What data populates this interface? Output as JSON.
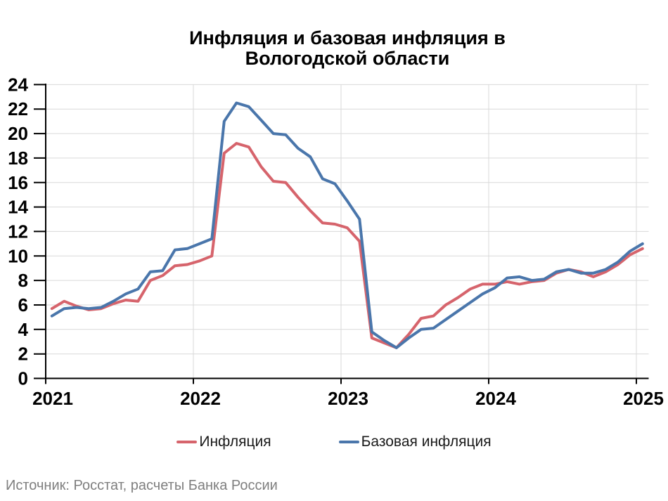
{
  "chart": {
    "title_lines": [
      "Инфляция и базовая инфляция в",
      "Вологодской области"
    ],
    "source": "Источник: Росстат, расчеты Банка России"
  },
  "chart_data": {
    "type": "line",
    "title": "Инфляция и базовая инфляция в Вологодской области",
    "xlabel": "",
    "ylabel": "",
    "x_start": "2021-01",
    "x_end": "2025-01",
    "x_freq": "monthly",
    "x_tick_labels": [
      "2021",
      "2022",
      "2023",
      "2024",
      "2025"
    ],
    "ylim": [
      0,
      24
    ],
    "y_tick_step": 2,
    "grid": true,
    "legend_position": "bottom",
    "axis_color": "#000000",
    "grid_color": "#d9d9d9",
    "series": [
      {
        "name": "Инфляция",
        "color": "#d6646c",
        "values": [
          5.7,
          6.3,
          5.9,
          5.6,
          5.7,
          6.1,
          6.4,
          6.3,
          8.0,
          8.4,
          9.2,
          9.3,
          9.6,
          10.0,
          18.4,
          19.2,
          18.9,
          17.3,
          16.1,
          16.0,
          14.8,
          13.7,
          12.7,
          12.6,
          12.3,
          11.2,
          3.3,
          2.9,
          2.5,
          3.6,
          4.9,
          5.1,
          6.0,
          6.6,
          7.3,
          7.7,
          7.7,
          7.9,
          7.7,
          7.9,
          8.0,
          8.6,
          8.9,
          8.7,
          8.3,
          8.7,
          9.3,
          10.1,
          10.6
        ]
      },
      {
        "name": "Базовая инфляция",
        "color": "#4a76ab",
        "values": [
          5.1,
          5.7,
          5.8,
          5.7,
          5.8,
          6.3,
          6.9,
          7.3,
          8.7,
          8.8,
          10.5,
          10.6,
          11.0,
          11.4,
          21.0,
          22.5,
          22.2,
          21.1,
          20.0,
          19.9,
          18.8,
          18.1,
          16.3,
          15.9,
          14.5,
          13.0,
          3.8,
          3.1,
          2.5,
          3.3,
          4.0,
          4.1,
          4.8,
          5.5,
          6.2,
          6.9,
          7.4,
          8.2,
          8.3,
          8.0,
          8.1,
          8.7,
          8.9,
          8.6,
          8.6,
          8.9,
          9.5,
          10.4,
          11.0
        ]
      }
    ]
  }
}
